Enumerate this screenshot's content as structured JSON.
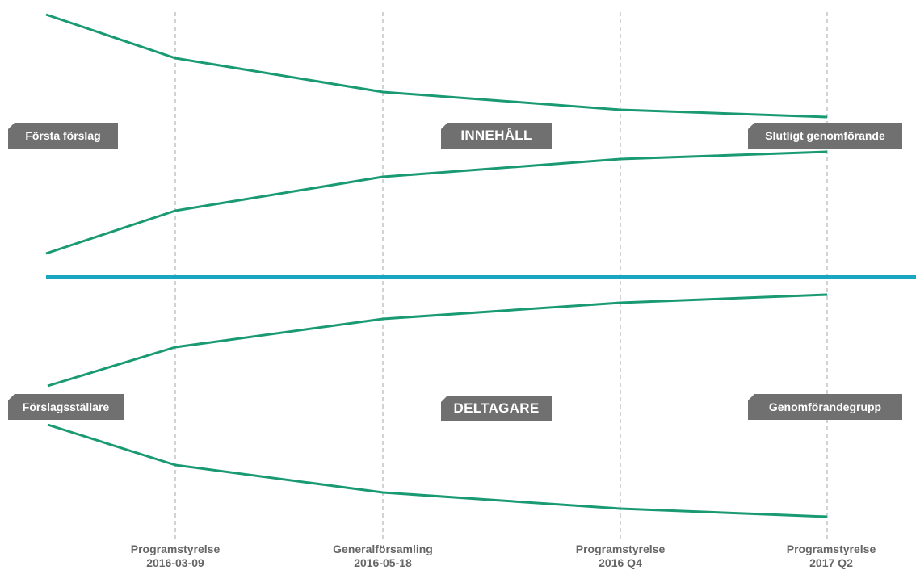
{
  "diagram": {
    "colors": {
      "curve": "#1a9a72",
      "axis": "#1aa6c2",
      "guide": "#b5b5b5",
      "tag": "#707070",
      "milestone_text": "#666666"
    },
    "labels": {
      "start_top": "Första förslag",
      "center_top": "INNEHÅLL",
      "end_top": "Slutligt genomförande",
      "start_bottom": "Förslagsställare",
      "center_bottom": "DELTAGARE",
      "end_bottom": "Genomförandegrupp"
    },
    "milestones": [
      {
        "title": "Programstyrelse",
        "date": "2016-03-09"
      },
      {
        "title": "Generalförsamling",
        "date": "2016-05-18"
      },
      {
        "title": "Programstyrelse",
        "date": "2016 Q4"
      },
      {
        "title": "Programstyrelse",
        "date": "2017 Q2"
      }
    ]
  }
}
